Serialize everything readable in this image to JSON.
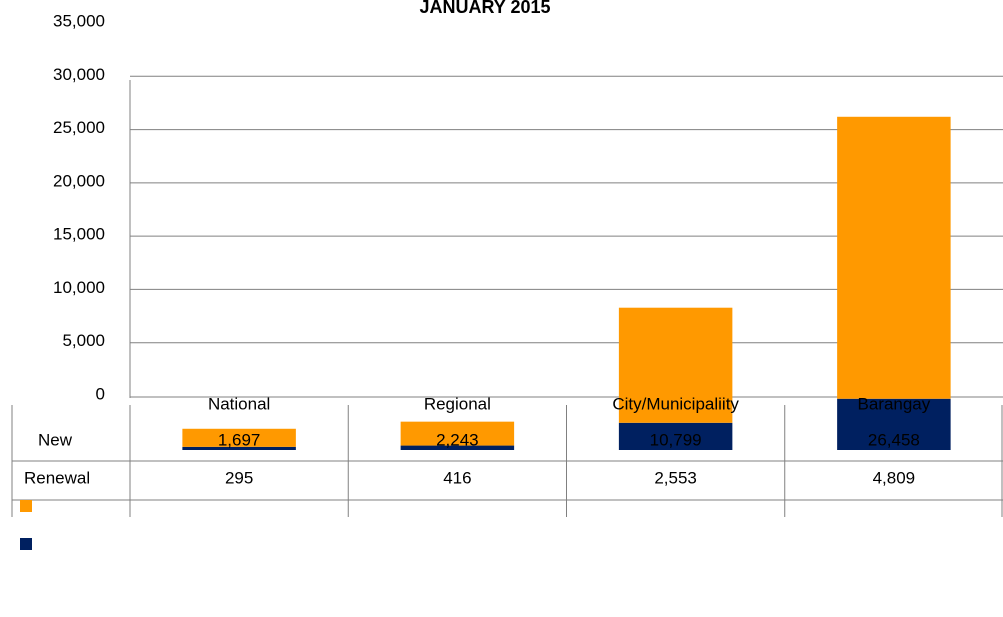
{
  "chart_data": {
    "type": "bar",
    "stacked": true,
    "title": "JANUARY 2015",
    "categories": [
      "National",
      "Regional",
      "City/Municipaliity",
      "Barangay"
    ],
    "series": [
      {
        "name": "Renewal",
        "color": "#002060",
        "values": [
          295,
          416,
          2553,
          4809
        ],
        "value_labels": [
          "295",
          "416",
          "2,553",
          "4,809"
        ]
      },
      {
        "name": "New",
        "color": "#ff9900",
        "values": [
          1697,
          2243,
          10799,
          26458
        ],
        "value_labels": [
          "1,697",
          "2,243",
          "10,799",
          "26,458"
        ]
      }
    ],
    "ylim": [
      0,
      35000
    ],
    "yticks": [
      {
        "value": 0,
        "label": "0"
      },
      {
        "value": 5000,
        "label": "5,000"
      },
      {
        "value": 10000,
        "label": "10,000"
      },
      {
        "value": 15000,
        "label": "15,000"
      },
      {
        "value": 20000,
        "label": "20,000"
      },
      {
        "value": 25000,
        "label": "25,000"
      },
      {
        "value": 30000,
        "label": "30,000"
      },
      {
        "value": 35000,
        "label": "35,000"
      }
    ],
    "grid": true
  }
}
